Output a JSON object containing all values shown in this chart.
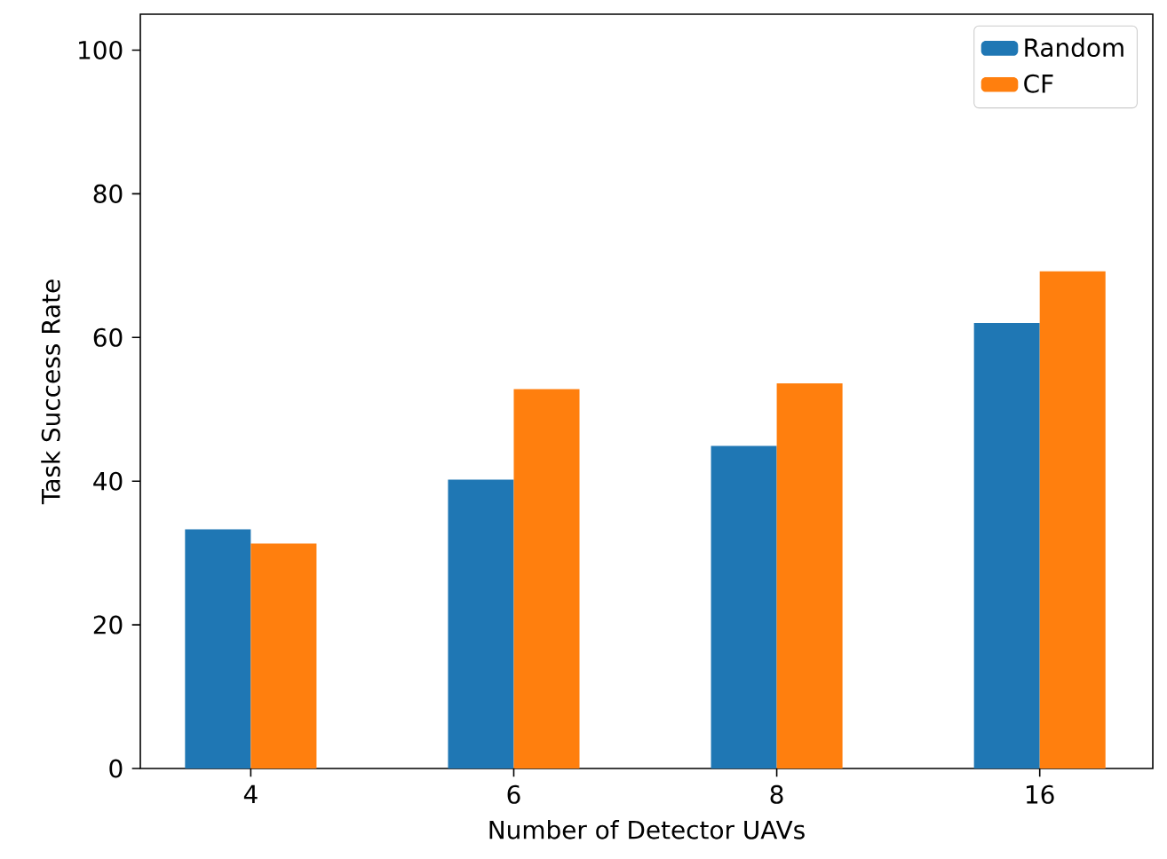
{
  "chart_data": {
    "type": "bar",
    "xlabel": "Number of Detector UAVs",
    "ylabel": "Task Success Rate",
    "categories": [
      "4",
      "6",
      "8",
      "16"
    ],
    "series": [
      {
        "name": "Random",
        "color": "#1f77b4",
        "values": [
          33.3,
          40.2,
          44.9,
          62.0
        ]
      },
      {
        "name": "CF",
        "color": "#ff7f0e",
        "values": [
          31.3,
          52.8,
          53.6,
          69.2
        ]
      }
    ],
    "ylim": [
      0,
      105
    ],
    "yticks": [
      0,
      20,
      40,
      60,
      80,
      100
    ],
    "legend": "top right"
  }
}
